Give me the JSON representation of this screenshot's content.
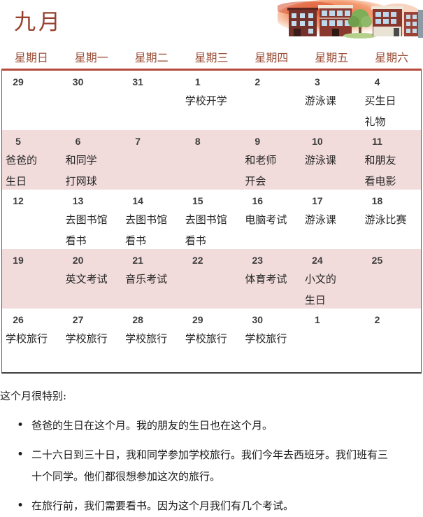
{
  "calendar": {
    "title": "九月",
    "weekdays": [
      "星期日",
      "星期一",
      "星期二",
      "星期三",
      "星期四",
      "星期五",
      "星期六"
    ],
    "weeks": [
      {
        "shaded": false,
        "cells": [
          {
            "date": "29",
            "event": ""
          },
          {
            "date": "30",
            "event": ""
          },
          {
            "date": "31",
            "event": ""
          },
          {
            "date": "1",
            "event": "学校开学"
          },
          {
            "date": "2",
            "event": ""
          },
          {
            "date": "3",
            "event": "游泳课"
          },
          {
            "date": "4",
            "event": "买生日\n礼物"
          }
        ]
      },
      {
        "shaded": true,
        "cells": [
          {
            "date": "5",
            "event": "爸爸的\n生日"
          },
          {
            "date": "6",
            "event": "和同学\n打网球"
          },
          {
            "date": "7",
            "event": ""
          },
          {
            "date": "8",
            "event": ""
          },
          {
            "date": "9",
            "event": "和老师\n开会"
          },
          {
            "date": "10",
            "event": "游泳课"
          },
          {
            "date": "11",
            "event": "和朋友\n看电影"
          }
        ]
      },
      {
        "shaded": false,
        "cells": [
          {
            "date": "12",
            "event": ""
          },
          {
            "date": "13",
            "event": "去图书馆\n看书"
          },
          {
            "date": "14",
            "event": "去图书馆\n看书"
          },
          {
            "date": "15",
            "event": "去图书馆\n看书"
          },
          {
            "date": "16",
            "event": "电脑考试"
          },
          {
            "date": "17",
            "event": "游泳课"
          },
          {
            "date": "18",
            "event": "游泳比赛"
          }
        ]
      },
      {
        "shaded": true,
        "cells": [
          {
            "date": "19",
            "event": ""
          },
          {
            "date": "20",
            "event": "英文考试"
          },
          {
            "date": "21",
            "event": "音乐考试"
          },
          {
            "date": "22",
            "event": ""
          },
          {
            "date": "23",
            "event": "体育考试"
          },
          {
            "date": "24",
            "event": "小文的\n生日"
          },
          {
            "date": "25",
            "event": ""
          }
        ]
      },
      {
        "shaded": false,
        "cells": [
          {
            "date": "26",
            "event": "学校旅行"
          },
          {
            "date": "27",
            "event": "学校旅行"
          },
          {
            "date": "28",
            "event": "学校旅行"
          },
          {
            "date": "29",
            "event": "学校旅行"
          },
          {
            "date": "30",
            "event": "学校旅行"
          },
          {
            "date": "1",
            "event": ""
          },
          {
            "date": "2",
            "event": ""
          }
        ]
      }
    ]
  },
  "notes": {
    "intro": "这个月很特别:",
    "bullets": [
      "爸爸的生日在这个月。我的朋友的生日也在这个月。",
      "二十六日到三十日，我和同学参加学校旅行。我们今年去西班牙。我们班有三十个同学。他们都很想参加这次的旅行。",
      "在旅行前，我们需要看书。因为这个月我们有几个考试。"
    ]
  },
  "illustration": "city-buildings-at-sunset",
  "colors": {
    "title_accent": "#963f2c",
    "weekday_accent": "#9c4f38",
    "divider_red": "#b5493b",
    "week_highlight_pink": "#f2dcdb",
    "table_border_dark": "#3f4040"
  }
}
